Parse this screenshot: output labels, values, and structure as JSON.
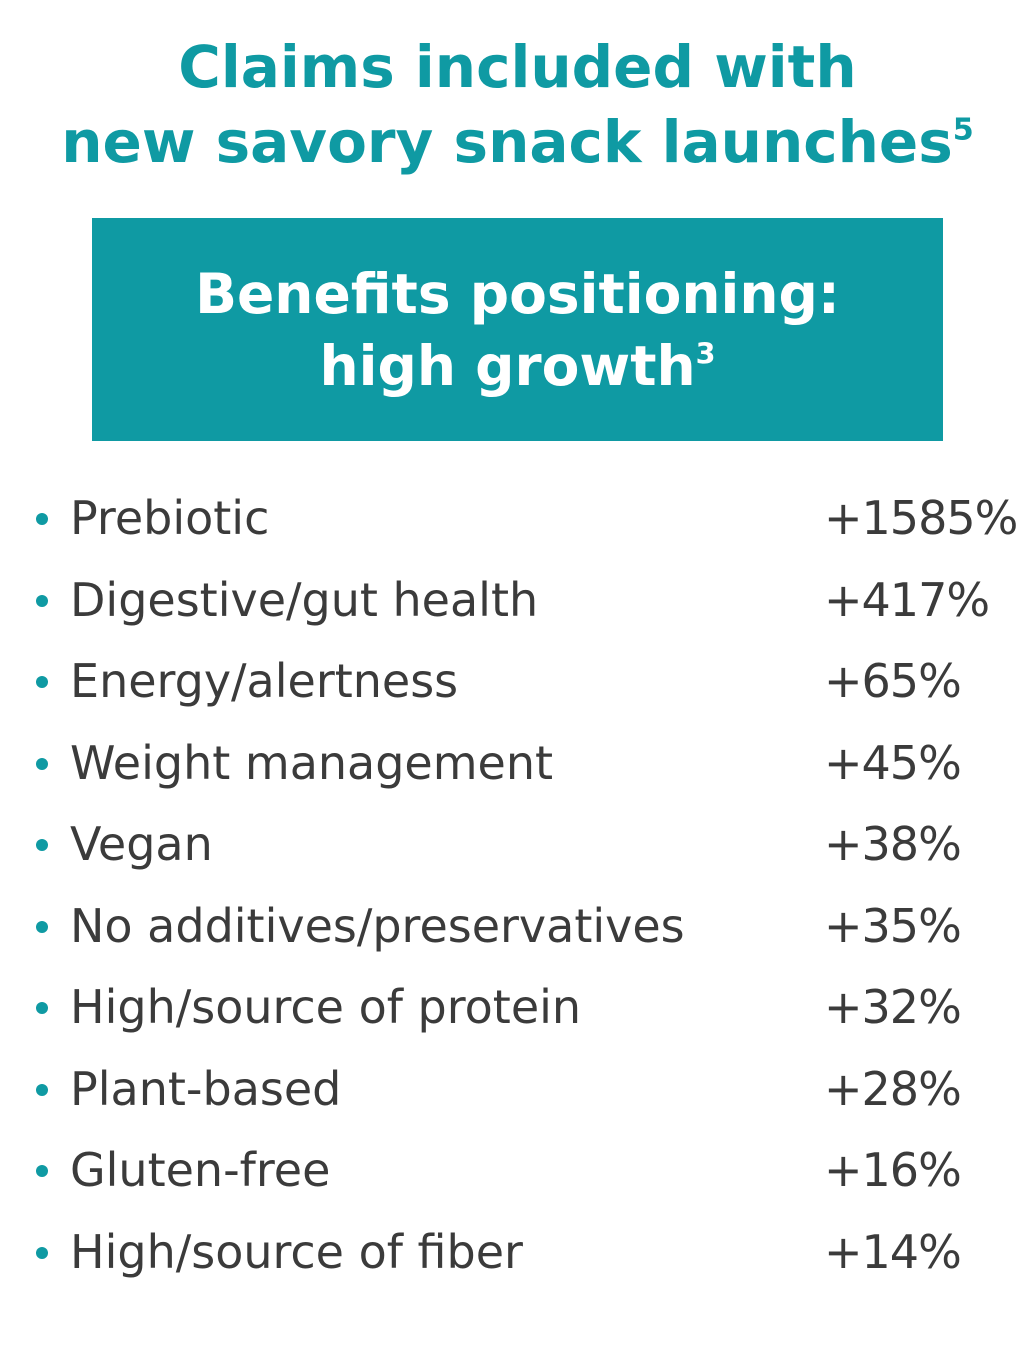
{
  "title": {
    "line1": "Claims included with",
    "line2": "new savory snack launches",
    "line2_sup": "5"
  },
  "banner": {
    "line1": "Benefits positioning:",
    "line2": "high growth",
    "line2_sup": "3"
  },
  "colors": {
    "accent": "#0f9aa3",
    "text": "#3b3b3b",
    "background": "#ffffff"
  },
  "claims": [
    {
      "label": "Prebiotic",
      "value": "+1585%"
    },
    {
      "label": "Digestive/gut health",
      "value": "+417%"
    },
    {
      "label": "Energy/alertness",
      "value": "+65%"
    },
    {
      "label": "Weight management",
      "value": "+45%"
    },
    {
      "label": "Vegan",
      "value": "+38%"
    },
    {
      "label": "No additives/preservatives",
      "value": "+35%"
    },
    {
      "label": "High/source of protein",
      "value": "+32%"
    },
    {
      "label": "Plant-based",
      "value": "+28%"
    },
    {
      "label": "Gluten-free",
      "value": "+16%"
    },
    {
      "label": "High/source of fiber",
      "value": "+14%"
    }
  ]
}
